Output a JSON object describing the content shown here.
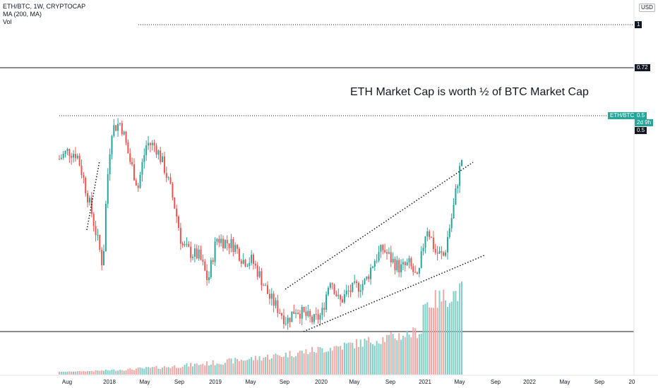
{
  "legend": {
    "symbol": "ETH/BTC, 1W, CRYPTOCAP",
    "ma": "MA (200, MA)",
    "vol": "Vol"
  },
  "annotation": "ETH Market Cap is worth ½ of BTC Market Cap",
  "currency": "USD",
  "price_tags": {
    "one": "1",
    "level_072": "0.72",
    "symbol_label": "ETH/BTC",
    "symbol_value": "0.5",
    "countdown": "2d 9h",
    "level_05": "0.5"
  },
  "colors": {
    "up": "#26a69a",
    "down": "#ef5350",
    "vol_up": "#7fcfc6",
    "vol_down": "#f4a6a4",
    "line": "#131722"
  },
  "chart_data": {
    "type": "candlestick",
    "symbol": "ETH/BTC",
    "interval": "1W",
    "x_ticks": [
      "Aug",
      "2018",
      "May",
      "Sep",
      "2019",
      "May",
      "Sep",
      "2020",
      "May",
      "Sep",
      "2021",
      "May",
      "Sep",
      "2022",
      "May",
      "Sep",
      "20"
    ],
    "horizontal_levels": [
      1,
      0.72,
      0.5
    ],
    "close_path": [
      [
        "2017-07",
        0.07
      ],
      [
        "2017-08",
        0.075
      ],
      [
        "2017-09",
        0.073
      ],
      [
        "2017-10",
        0.055
      ],
      [
        "2017-11",
        0.04
      ],
      [
        "2017-12",
        0.028
      ],
      [
        "2018-01",
        0.09
      ],
      [
        "2018-02",
        0.095
      ],
      [
        "2018-03",
        0.07
      ],
      [
        "2018-04",
        0.055
      ],
      [
        "2018-05",
        0.08
      ],
      [
        "2018-06",
        0.078
      ],
      [
        "2018-07",
        0.065
      ],
      [
        "2018-08",
        0.05
      ],
      [
        "2018-09",
        0.034
      ],
      [
        "2018-10",
        0.032
      ],
      [
        "2018-11",
        0.031
      ],
      [
        "2018-12",
        0.025
      ],
      [
        "2019-01",
        0.036
      ],
      [
        "2019-02",
        0.035
      ],
      [
        "2019-03",
        0.034
      ],
      [
        "2019-04",
        0.03
      ],
      [
        "2019-05",
        0.03
      ],
      [
        "2019-06",
        0.026
      ],
      [
        "2019-07",
        0.022
      ],
      [
        "2019-08",
        0.02
      ],
      [
        "2019-09",
        0.018
      ],
      [
        "2019-10",
        0.02
      ],
      [
        "2019-11",
        0.019
      ],
      [
        "2019-12",
        0.018
      ],
      [
        "2020-01",
        0.019
      ],
      [
        "2020-02",
        0.026
      ],
      [
        "2020-03",
        0.021
      ],
      [
        "2020-04",
        0.023
      ],
      [
        "2020-05",
        0.024
      ],
      [
        "2020-06",
        0.025
      ],
      [
        "2020-07",
        0.03
      ],
      [
        "2020-08",
        0.033
      ],
      [
        "2020-09",
        0.03
      ],
      [
        "2020-10",
        0.028
      ],
      [
        "2020-11",
        0.029
      ],
      [
        "2020-12",
        0.025
      ],
      [
        "2021-01",
        0.04
      ],
      [
        "2021-02",
        0.032
      ],
      [
        "2021-03",
        0.031
      ],
      [
        "2021-04",
        0.045
      ],
      [
        "2021-05",
        0.07
      ]
    ],
    "trendlines": "dotted channel lines drawn on chart",
    "moving_average": "MA (200, MA)",
    "volume": true
  }
}
